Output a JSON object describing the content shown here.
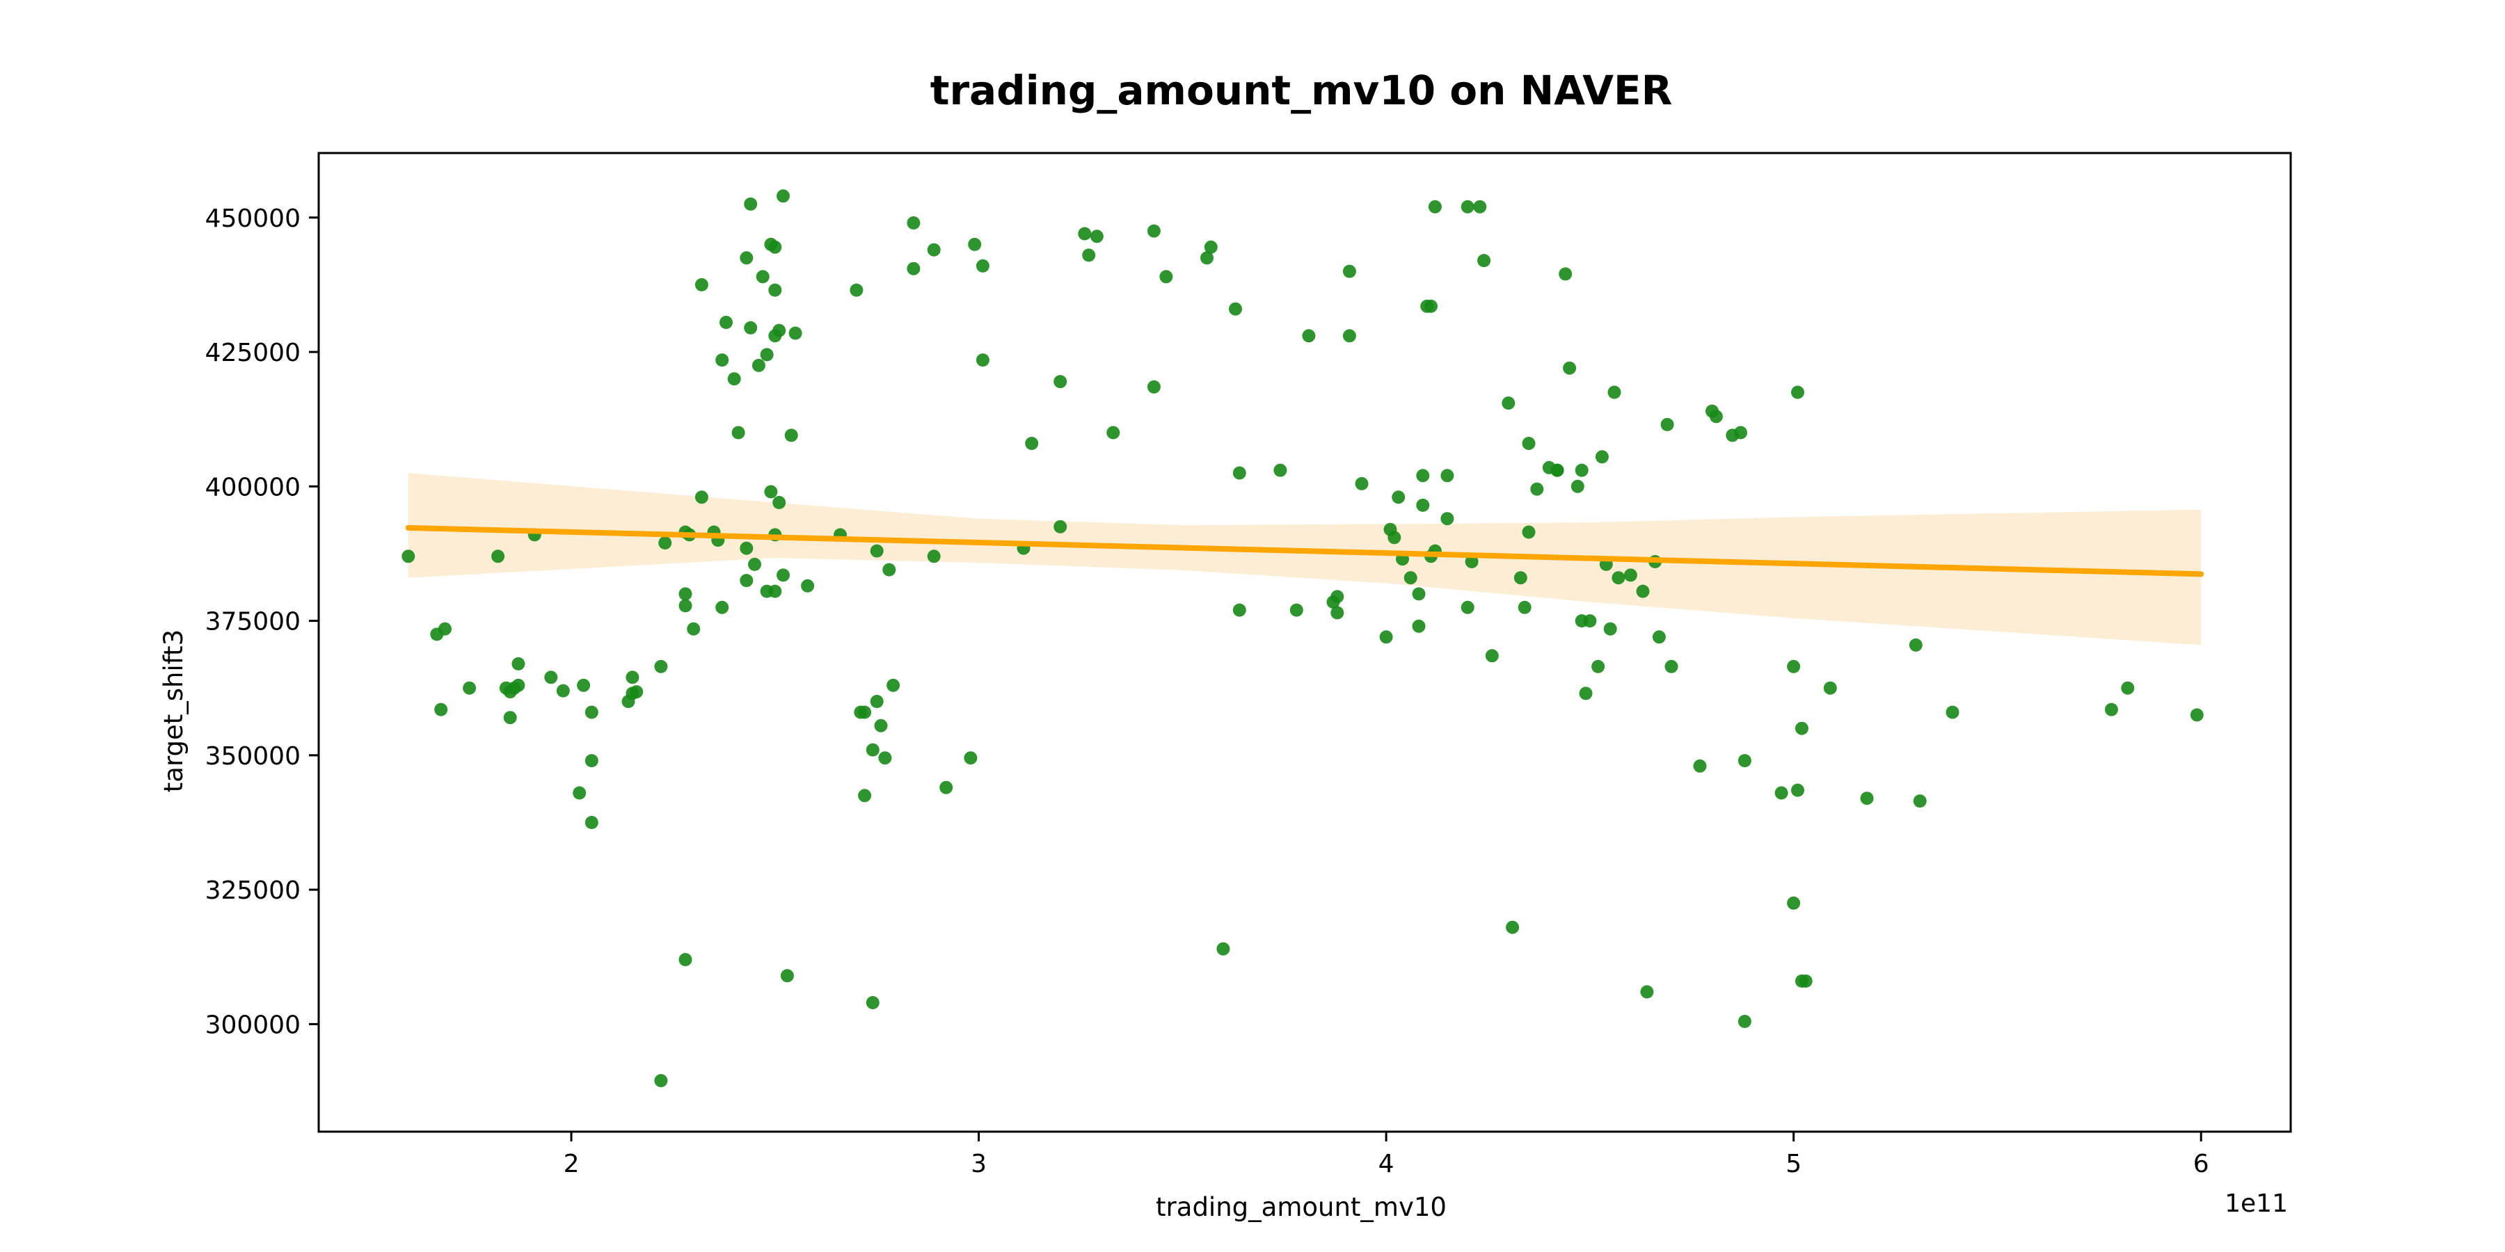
{
  "chart_data": {
    "type": "scatter",
    "title": "trading_amount_mv10 on NAVER",
    "xlabel": "trading_amount_mv10",
    "ylabel": "target_shift3",
    "x_offset_label": "1e11",
    "xlim": [
      1.38,
      6.22
    ],
    "ylim": [
      280000,
      462000
    ],
    "xticks": [
      2,
      3,
      4,
      5,
      6
    ],
    "xtick_labels": [
      "2",
      "3",
      "4",
      "5",
      "6"
    ],
    "yticks": [
      300000,
      325000,
      350000,
      375000,
      400000,
      425000,
      450000
    ],
    "ytick_labels": [
      "300000",
      "325000",
      "350000",
      "375000",
      "400000",
      "425000",
      "450000"
    ],
    "grid": false,
    "colors": {
      "points": "#178a17",
      "regression_line": "#ffa500",
      "confidence_band": "#fdebd0"
    },
    "series": [
      {
        "points": [
          [
            1.6,
            387000
          ],
          [
            1.67,
            372500
          ],
          [
            1.68,
            358500
          ],
          [
            1.69,
            373500
          ],
          [
            1.75,
            362500
          ],
          [
            1.82,
            387000
          ],
          [
            1.84,
            362500
          ],
          [
            1.85,
            357000
          ],
          [
            1.85,
            361800
          ],
          [
            1.86,
            362500
          ],
          [
            1.87,
            367000
          ],
          [
            1.87,
            363000
          ],
          [
            1.91,
            391000
          ],
          [
            1.95,
            364500
          ],
          [
            1.98,
            362000
          ],
          [
            2.02,
            343000
          ],
          [
            2.03,
            363000
          ],
          [
            2.05,
            337500
          ],
          [
            2.05,
            358000
          ],
          [
            2.05,
            349000
          ],
          [
            2.14,
            360000
          ],
          [
            2.15,
            361500
          ],
          [
            2.15,
            364500
          ],
          [
            2.16,
            361800
          ],
          [
            2.22,
            366500
          ],
          [
            2.22,
            289500
          ],
          [
            2.23,
            389500
          ],
          [
            2.28,
            377800
          ],
          [
            2.28,
            380000
          ],
          [
            2.28,
            391500
          ],
          [
            2.28,
            312000
          ],
          [
            2.29,
            391000
          ],
          [
            2.3,
            373500
          ],
          [
            2.32,
            437500
          ],
          [
            2.32,
            398000
          ],
          [
            2.35,
            391500
          ],
          [
            2.36,
            390000
          ],
          [
            2.37,
            423500
          ],
          [
            2.37,
            377500
          ],
          [
            2.38,
            430500
          ],
          [
            2.4,
            420000
          ],
          [
            2.41,
            410000
          ],
          [
            2.43,
            442500
          ],
          [
            2.43,
            388500
          ],
          [
            2.43,
            382500
          ],
          [
            2.44,
            429500
          ],
          [
            2.44,
            452500
          ],
          [
            2.45,
            385500
          ],
          [
            2.46,
            422500
          ],
          [
            2.47,
            439000
          ],
          [
            2.48,
            380500
          ],
          [
            2.48,
            424500
          ],
          [
            2.49,
            399000
          ],
          [
            2.49,
            445000
          ],
          [
            2.5,
            444500
          ],
          [
            2.5,
            436500
          ],
          [
            2.5,
            428000
          ],
          [
            2.5,
            391000
          ],
          [
            2.5,
            380500
          ],
          [
            2.51,
            397000
          ],
          [
            2.51,
            429000
          ],
          [
            2.52,
            383500
          ],
          [
            2.52,
            454000
          ],
          [
            2.53,
            309000
          ],
          [
            2.54,
            409500
          ],
          [
            2.55,
            428500
          ],
          [
            2.58,
            381500
          ],
          [
            2.66,
            391000
          ],
          [
            2.7,
            436500
          ],
          [
            2.71,
            358000
          ],
          [
            2.72,
            342500
          ],
          [
            2.72,
            358000
          ],
          [
            2.74,
            351000
          ],
          [
            2.74,
            304000
          ],
          [
            2.75,
            360000
          ],
          [
            2.75,
            388000
          ],
          [
            2.76,
            355500
          ],
          [
            2.77,
            349500
          ],
          [
            2.78,
            384500
          ],
          [
            2.79,
            363000
          ],
          [
            2.84,
            449000
          ],
          [
            2.84,
            440500
          ],
          [
            2.89,
            444000
          ],
          [
            2.89,
            387000
          ],
          [
            2.92,
            344000
          ],
          [
            2.98,
            349500
          ],
          [
            2.99,
            445000
          ],
          [
            3.01,
            441000
          ],
          [
            3.01,
            423500
          ],
          [
            3.11,
            388500
          ],
          [
            3.13,
            408000
          ],
          [
            3.2,
            419500
          ],
          [
            3.2,
            392500
          ],
          [
            3.26,
            447000
          ],
          [
            3.27,
            443000
          ],
          [
            3.29,
            446500
          ],
          [
            3.33,
            410000
          ],
          [
            3.43,
            447500
          ],
          [
            3.43,
            418500
          ],
          [
            3.46,
            439000
          ],
          [
            3.56,
            442500
          ],
          [
            3.57,
            444500
          ],
          [
            3.6,
            314000
          ],
          [
            3.63,
            433000
          ],
          [
            3.64,
            377000
          ],
          [
            3.64,
            402500
          ],
          [
            3.74,
            403000
          ],
          [
            3.78,
            377000
          ],
          [
            3.81,
            428000
          ],
          [
            3.87,
            378500
          ],
          [
            3.88,
            379500
          ],
          [
            3.88,
            376500
          ],
          [
            3.91,
            428000
          ],
          [
            3.91,
            440000
          ],
          [
            3.94,
            400500
          ],
          [
            4.0,
            372000
          ],
          [
            4.01,
            392000
          ],
          [
            4.02,
            390500
          ],
          [
            4.03,
            398000
          ],
          [
            4.04,
            386500
          ],
          [
            4.06,
            383000
          ],
          [
            4.08,
            374000
          ],
          [
            4.08,
            380000
          ],
          [
            4.09,
            402000
          ],
          [
            4.09,
            396500
          ],
          [
            4.1,
            433500
          ],
          [
            4.11,
            433500
          ],
          [
            4.11,
            387000
          ],
          [
            4.12,
            452000
          ],
          [
            4.12,
            388000
          ],
          [
            4.15,
            394000
          ],
          [
            4.15,
            402000
          ],
          [
            4.2,
            452000
          ],
          [
            4.2,
            377500
          ],
          [
            4.21,
            386000
          ],
          [
            4.23,
            452000
          ],
          [
            4.24,
            442000
          ],
          [
            4.26,
            368500
          ],
          [
            4.3,
            415500
          ],
          [
            4.31,
            318000
          ],
          [
            4.33,
            383000
          ],
          [
            4.34,
            377500
          ],
          [
            4.35,
            391500
          ],
          [
            4.35,
            408000
          ],
          [
            4.37,
            399500
          ],
          [
            4.4,
            403500
          ],
          [
            4.42,
            403000
          ],
          [
            4.42,
            403000
          ],
          [
            4.44,
            439500
          ],
          [
            4.45,
            422000
          ],
          [
            4.47,
            400000
          ],
          [
            4.48,
            403000
          ],
          [
            4.48,
            375000
          ],
          [
            4.5,
            375000
          ],
          [
            4.49,
            361500
          ],
          [
            4.52,
            366500
          ],
          [
            4.53,
            405500
          ],
          [
            4.54,
            385500
          ],
          [
            4.55,
            373500
          ],
          [
            4.56,
            417500
          ],
          [
            4.57,
            383000
          ],
          [
            4.6,
            383500
          ],
          [
            4.63,
            380500
          ],
          [
            4.64,
            306000
          ],
          [
            4.66,
            386000
          ],
          [
            4.67,
            372000
          ],
          [
            4.69,
            411500
          ],
          [
            4.7,
            366500
          ],
          [
            4.77,
            348000
          ],
          [
            4.8,
            414000
          ],
          [
            4.81,
            413000
          ],
          [
            4.85,
            409500
          ],
          [
            4.87,
            410000
          ],
          [
            4.88,
            349000
          ],
          [
            4.88,
            300500
          ],
          [
            4.97,
            343000
          ],
          [
            5.0,
            366500
          ],
          [
            5.0,
            322500
          ],
          [
            5.01,
            343500
          ],
          [
            5.01,
            417500
          ],
          [
            5.02,
            355000
          ],
          [
            5.02,
            308000
          ],
          [
            5.03,
            308000
          ],
          [
            5.09,
            362500
          ],
          [
            5.18,
            342000
          ],
          [
            5.3,
            370500
          ],
          [
            5.31,
            341500
          ],
          [
            5.39,
            358000
          ],
          [
            5.78,
            358500
          ],
          [
            5.82,
            362500
          ],
          [
            5.99,
            357500
          ]
        ]
      }
    ],
    "regression": {
      "x": [
        1.6,
        6.0
      ],
      "y": [
        392300,
        383700
      ],
      "ci_x": [
        1.6,
        2.5,
        3.0,
        3.5,
        4.0,
        4.5,
        5.0,
        5.5,
        6.0
      ],
      "ci_lower": [
        383000,
        386700,
        385800,
        384400,
        382000,
        378500,
        375500,
        373000,
        370500
      ],
      "ci_upper": [
        402500,
        397000,
        394000,
        392800,
        393000,
        393300,
        394300,
        395000,
        395700
      ]
    }
  }
}
